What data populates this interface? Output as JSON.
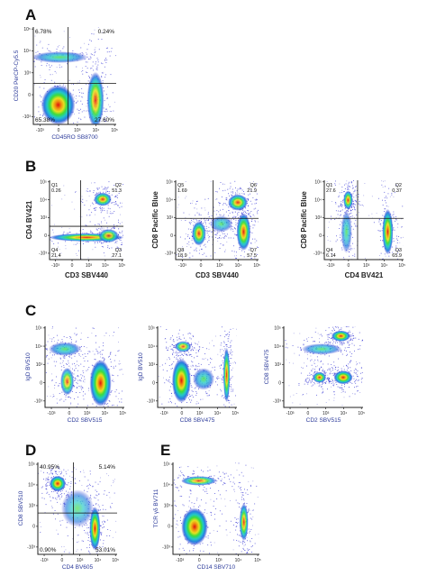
{
  "colors": {
    "density": [
      "#1414c8",
      "#2a7de0",
      "#22c8c8",
      "#3cdc3c",
      "#e8e020",
      "#f08c10",
      "#e01010"
    ],
    "blue_axis_title": "#2b3a9a",
    "black_axis_title": "#222222"
  },
  "chart_data": [
    {
      "type": "scatter",
      "panel": "A",
      "xlabel": "CD45RO SB8700",
      "ylabel": "CD20 PerCP-Cy5.5",
      "xticks": [
        "-10³",
        "0",
        "10³",
        "10⁴",
        "10⁵"
      ],
      "yticks": [
        "-10³",
        "0",
        "10³",
        "10⁴",
        "10⁵"
      ],
      "quadrants": [
        {
          "position": "top-left",
          "label": "6.78%"
        },
        {
          "position": "top-right",
          "label": "0.24%"
        },
        {
          "position": "bottom-left",
          "label": "65.38%"
        },
        {
          "position": "bottom-right",
          "label": "27.60%"
        }
      ],
      "populations": [
        {
          "x": 0.32,
          "y": 0.69,
          "sx": 0.2,
          "sy": 0.035,
          "density": 0.5
        },
        {
          "x": 0.3,
          "y": 0.2,
          "sx": 0.12,
          "sy": 0.12,
          "density": 1.0
        },
        {
          "x": 0.75,
          "y": 0.25,
          "sx": 0.06,
          "sy": 0.17,
          "density": 0.75
        }
      ]
    },
    {
      "type": "scatter",
      "panel": "B",
      "xlabel": "CD3 SBV440",
      "ylabel": "CD4 BV421",
      "xticks": [
        "-10³",
        "0",
        "10³",
        "10⁴",
        "10⁵"
      ],
      "yticks": [
        "-10³",
        "0",
        "10³",
        "10⁴",
        "10⁵"
      ],
      "quadrants": [
        {
          "position": "top-left",
          "label": "Q1\n0.26"
        },
        {
          "position": "top-right",
          "label": "Q2\n51.3"
        },
        {
          "position": "bottom-left",
          "label": "Q4\n21.4"
        },
        {
          "position": "bottom-right",
          "label": "Q3\n27.1"
        }
      ],
      "populations": [
        {
          "x": 0.72,
          "y": 0.76,
          "sx": 0.07,
          "sy": 0.05,
          "density": 0.8
        },
        {
          "x": 0.5,
          "y": 0.28,
          "sx": 0.3,
          "sy": 0.03,
          "density": 0.85
        },
        {
          "x": 0.8,
          "y": 0.3,
          "sx": 0.08,
          "sy": 0.05,
          "density": 0.6
        }
      ]
    },
    {
      "type": "scatter",
      "panel": "B",
      "xlabel": "CD3 SBV440",
      "ylabel": "CD8 Pacific Blue",
      "xticks": [
        "-10³",
        "0",
        "10³",
        "10⁴",
        "10⁵"
      ],
      "yticks": [
        "-10³",
        "0",
        "10³",
        "10⁴",
        "10⁵"
      ],
      "quadrants": [
        {
          "position": "top-left",
          "label": "Q5\n1.69"
        },
        {
          "position": "top-right",
          "label": "Q6\n21.9"
        },
        {
          "position": "bottom-left",
          "label": "Q8\n18.9"
        },
        {
          "position": "bottom-right",
          "label": "Q7\n57.5"
        }
      ],
      "populations": [
        {
          "x": 0.75,
          "y": 0.72,
          "sx": 0.07,
          "sy": 0.06,
          "density": 0.8
        },
        {
          "x": 0.28,
          "y": 0.33,
          "sx": 0.05,
          "sy": 0.09,
          "density": 0.8
        },
        {
          "x": 0.82,
          "y": 0.35,
          "sx": 0.05,
          "sy": 0.14,
          "density": 0.9
        },
        {
          "x": 0.55,
          "y": 0.45,
          "sx": 0.08,
          "sy": 0.06,
          "density": 0.4
        }
      ]
    },
    {
      "type": "scatter",
      "panel": "B",
      "xlabel": "CD4 BV421",
      "ylabel": "CD8 Pacific Blue",
      "xticks": [
        "-10³",
        "0",
        "10³",
        "10⁴",
        "10⁵"
      ],
      "yticks": [
        "-10³",
        "0",
        "10³",
        "10⁴",
        "10⁵"
      ],
      "quadrants": [
        {
          "position": "top-left",
          "label": "Q1\n27.6"
        },
        {
          "position": "top-right",
          "label": "Q2\n0.37"
        },
        {
          "position": "bottom-left",
          "label": "Q4\n6.14"
        },
        {
          "position": "bottom-right",
          "label": "Q3\n65.9"
        }
      ],
      "populations": [
        {
          "x": 0.3,
          "y": 0.75,
          "sx": 0.035,
          "sy": 0.07,
          "density": 0.8
        },
        {
          "x": 0.28,
          "y": 0.35,
          "sx": 0.04,
          "sy": 0.16,
          "density": 0.4
        },
        {
          "x": 0.8,
          "y": 0.35,
          "sx": 0.04,
          "sy": 0.17,
          "density": 0.9
        }
      ]
    },
    {
      "type": "scatter",
      "panel": "C",
      "xlabel": "CD2 SBV515",
      "ylabel": "IgD BV510",
      "xticks": [
        "-10³",
        "0",
        "10³",
        "10⁴",
        "10⁵"
      ],
      "yticks": [
        "-10³",
        "0",
        "10³",
        "10⁴",
        "10⁵"
      ],
      "quadrants": [],
      "populations": [
        {
          "x": 0.25,
          "y": 0.72,
          "sx": 0.12,
          "sy": 0.05,
          "density": 0.5
        },
        {
          "x": 0.28,
          "y": 0.32,
          "sx": 0.05,
          "sy": 0.1,
          "density": 0.6
        },
        {
          "x": 0.7,
          "y": 0.3,
          "sx": 0.08,
          "sy": 0.17,
          "density": 1.0
        }
      ]
    },
    {
      "type": "scatter",
      "panel": "C",
      "xlabel": "CD8 SBV475",
      "ylabel": "IgD BV510",
      "xticks": [
        "-10³",
        "0",
        "10³",
        "10⁴",
        "10⁵"
      ],
      "yticks": [
        "-10³",
        "0",
        "10³",
        "10⁴",
        "10⁵"
      ],
      "quadrants": [],
      "populations": [
        {
          "x": 0.32,
          "y": 0.75,
          "sx": 0.06,
          "sy": 0.04,
          "density": 0.6
        },
        {
          "x": 0.3,
          "y": 0.33,
          "sx": 0.07,
          "sy": 0.16,
          "density": 1.0
        },
        {
          "x": 0.58,
          "y": 0.35,
          "sx": 0.08,
          "sy": 0.08,
          "density": 0.5
        },
        {
          "x": 0.87,
          "y": 0.4,
          "sx": 0.025,
          "sy": 0.2,
          "density": 0.85
        }
      ]
    },
    {
      "type": "scatter",
      "panel": "C",
      "xlabel": "CD2 SBV515",
      "ylabel": "CD8 SBV475",
      "xticks": [
        "-10³",
        "0",
        "10³",
        "10⁴",
        "10⁵"
      ],
      "yticks": [
        "-10³",
        "0",
        "10³",
        "10⁴",
        "10⁵"
      ],
      "quadrants": [],
      "populations": [
        {
          "x": 0.72,
          "y": 0.88,
          "sx": 0.07,
          "sy": 0.04,
          "density": 0.9
        },
        {
          "x": 0.48,
          "y": 0.72,
          "sx": 0.15,
          "sy": 0.04,
          "density": 0.4
        },
        {
          "x": 0.45,
          "y": 0.37,
          "sx": 0.05,
          "sy": 0.04,
          "density": 0.8
        },
        {
          "x": 0.75,
          "y": 0.37,
          "sx": 0.07,
          "sy": 0.05,
          "density": 0.95
        }
      ]
    },
    {
      "type": "scatter",
      "panel": "D",
      "xlabel": "CD4 BV605",
      "ylabel": "CD8 SBV510",
      "xticks": [
        "-10³",
        "0",
        "10³",
        "10⁴",
        "10⁵"
      ],
      "yticks": [
        "-10³",
        "0",
        "10³",
        "10⁴",
        "10⁵"
      ],
      "quadrants": [
        {
          "position": "top-left",
          "label": "40.95%"
        },
        {
          "position": "top-right",
          "label": "5.14%"
        },
        {
          "position": "bottom-left",
          "label": "0.90%"
        },
        {
          "position": "bottom-right",
          "label": "53.01%"
        }
      ],
      "populations": [
        {
          "x": 0.25,
          "y": 0.77,
          "sx": 0.06,
          "sy": 0.05,
          "density": 0.95
        },
        {
          "x": 0.72,
          "y": 0.28,
          "sx": 0.04,
          "sy": 0.14,
          "density": 0.95
        },
        {
          "x": 0.5,
          "y": 0.5,
          "sx": 0.12,
          "sy": 0.12,
          "density": 0.25
        }
      ]
    },
    {
      "type": "scatter",
      "panel": "E",
      "xlabel": "CD14 SBV710",
      "ylabel": "TCR γδ BV711",
      "xticks": [
        "-10³",
        "0",
        "10³",
        "10⁴",
        "10⁵"
      ],
      "yticks": [
        "-10³",
        "0",
        "10³",
        "10⁴",
        "10⁵"
      ],
      "quadrants": [],
      "populations": [
        {
          "x": 0.3,
          "y": 0.8,
          "sx": 0.12,
          "sy": 0.03,
          "density": 0.6
        },
        {
          "x": 0.25,
          "y": 0.3,
          "sx": 0.09,
          "sy": 0.12,
          "density": 1.0
        },
        {
          "x": 0.82,
          "y": 0.35,
          "sx": 0.03,
          "sy": 0.12,
          "density": 0.8
        }
      ]
    }
  ]
}
